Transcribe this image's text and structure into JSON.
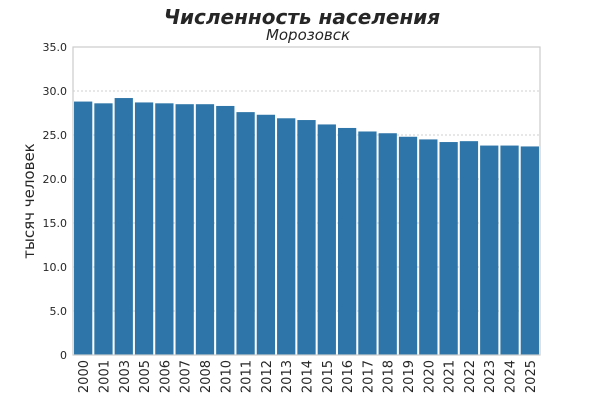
{
  "chart_data": {
    "type": "bar",
    "title": "Численность населения",
    "subtitle": "Морозовск",
    "xlabel": "",
    "ylabel": "тысяч человек",
    "ylim": [
      0,
      35
    ],
    "yticks": [
      "0",
      "5.0",
      "10.0",
      "15.0",
      "20.0",
      "25.0",
      "30.0",
      "35.0"
    ],
    "grid": true,
    "bar_color": "#2e76a9",
    "categories": [
      "2000",
      "2001",
      "2003",
      "2005",
      "2006",
      "2007",
      "2008",
      "2010",
      "2011",
      "2012",
      "2013",
      "2014",
      "2015",
      "2016",
      "2017",
      "2018",
      "2019",
      "2020",
      "2021",
      "2022",
      "2023",
      "2024",
      "2025"
    ],
    "values": [
      28.8,
      28.6,
      29.2,
      28.7,
      28.6,
      28.5,
      28.5,
      28.3,
      27.6,
      27.3,
      26.9,
      26.7,
      26.2,
      25.8,
      25.4,
      25.2,
      24.8,
      24.5,
      24.2,
      24.3,
      23.8,
      23.8,
      23.7
    ]
  }
}
